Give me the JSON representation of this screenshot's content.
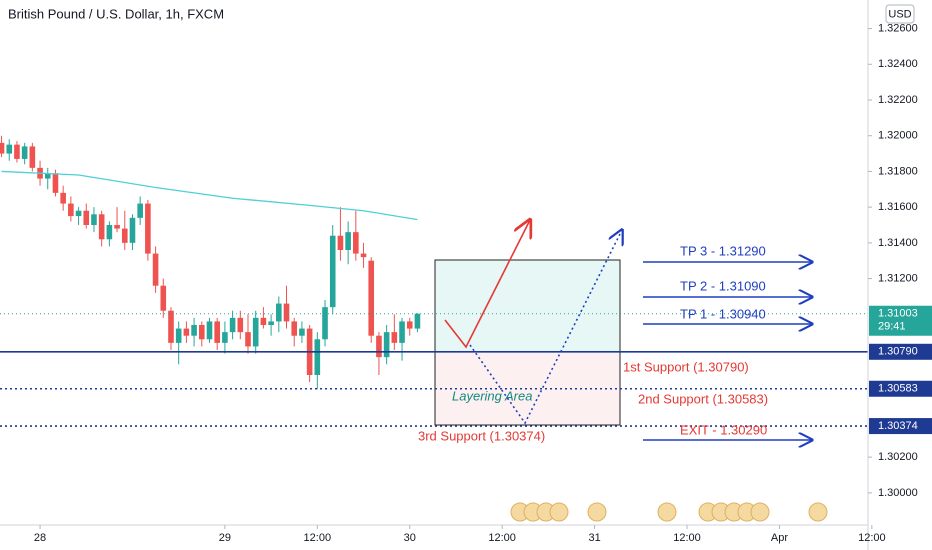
{
  "chart_data": {
    "type": "candlestick",
    "title": "British Pound / U.S. Dollar, 1h, FXCM",
    "currency": "USD",
    "up_color": "#26a69a",
    "down_color": "#ef5350",
    "x": [
      -5,
      -4,
      -3,
      -2,
      -1,
      0,
      1,
      2,
      3,
      4,
      5,
      6,
      7,
      8,
      9,
      10,
      11,
      12,
      13,
      14,
      15,
      16,
      17,
      18,
      19,
      20,
      21,
      22,
      23,
      24,
      25,
      26,
      27,
      28,
      29,
      30,
      31,
      32,
      33,
      34,
      35,
      36,
      37,
      38,
      39,
      40,
      41,
      42,
      43,
      44,
      45,
      46,
      47,
      48,
      49
    ],
    "open": [
      1.3196,
      1.319,
      1.3195,
      1.3187,
      1.3194,
      1.3182,
      1.3176,
      1.3179,
      1.3168,
      1.3162,
      1.3155,
      1.3158,
      1.315,
      1.3156,
      1.3142,
      1.315,
      1.3148,
      1.314,
      1.3154,
      1.3162,
      1.3134,
      1.3116,
      1.3102,
      1.3084,
      1.3092,
      1.3088,
      1.3094,
      1.3086,
      1.3096,
      1.3084,
      1.309,
      1.3098,
      1.309,
      1.3082,
      1.3098,
      1.3094,
      1.3096,
      1.3106,
      1.3096,
      1.3088,
      1.3092,
      1.3066,
      1.3086,
      1.3104,
      1.3144,
      1.3136,
      1.3146,
      1.3134,
      1.313,
      1.3088,
      1.3076,
      1.309,
      1.3084,
      1.3096,
      1.3092
    ],
    "high": [
      1.32,
      1.3198,
      1.3197,
      1.3196,
      1.3196,
      1.3186,
      1.3182,
      1.3181,
      1.3172,
      1.3166,
      1.316,
      1.3162,
      1.316,
      1.3158,
      1.3152,
      1.316,
      1.3158,
      1.3156,
      1.3166,
      1.3164,
      1.3138,
      1.312,
      1.3104,
      1.3096,
      1.3096,
      1.3098,
      1.3096,
      1.3098,
      1.3098,
      1.3096,
      1.3102,
      1.3102,
      1.31,
      1.3102,
      1.3104,
      1.31,
      1.311,
      1.3116,
      1.3098,
      1.3096,
      1.3094,
      1.309,
      1.3108,
      1.315,
      1.316,
      1.3152,
      1.3158,
      1.314,
      1.3132,
      1.309,
      1.3094,
      1.31,
      1.3098,
      1.3098,
      1.31006
    ],
    "low": [
      1.3188,
      1.3186,
      1.3185,
      1.3184,
      1.318,
      1.3172,
      1.317,
      1.3166,
      1.3158,
      1.3152,
      1.315,
      1.3148,
      1.3146,
      1.3138,
      1.3138,
      1.3146,
      1.3136,
      1.3136,
      1.315,
      1.313,
      1.3112,
      1.3098,
      1.308,
      1.3072,
      1.3084,
      1.3082,
      1.3082,
      1.3084,
      1.308,
      1.3078,
      1.3086,
      1.3086,
      1.3078,
      1.3078,
      1.3092,
      1.3088,
      1.309,
      1.3092,
      1.3082,
      1.3084,
      1.3062,
      1.3058,
      1.3082,
      1.31,
      1.313,
      1.3128,
      1.313,
      1.3126,
      1.3084,
      1.3066,
      1.3072,
      1.308,
      1.3074,
      1.3088,
      1.309
    ],
    "close": [
      1.319,
      1.3195,
      1.3187,
      1.3194,
      1.3182,
      1.3176,
      1.3179,
      1.3168,
      1.3162,
      1.3155,
      1.3158,
      1.315,
      1.3156,
      1.3142,
      1.315,
      1.3148,
      1.314,
      1.3154,
      1.3162,
      1.3134,
      1.3116,
      1.3102,
      1.3084,
      1.3092,
      1.3088,
      1.3094,
      1.3086,
      1.3096,
      1.3084,
      1.309,
      1.3098,
      1.309,
      1.3082,
      1.3098,
      1.3094,
      1.3096,
      1.3106,
      1.3096,
      1.3088,
      1.3092,
      1.3066,
      1.3086,
      1.3104,
      1.3144,
      1.3136,
      1.3146,
      1.3134,
      1.3132,
      1.3088,
      1.3076,
      1.309,
      1.3084,
      1.3096,
      1.3092,
      1.31003
    ],
    "ma": {
      "color": "#4dd0d6",
      "x": [
        -5,
        5,
        15,
        25,
        35,
        42,
        49
      ],
      "values": [
        1.318,
        1.3178,
        1.3171,
        1.3165,
        1.3161,
        1.3158,
        1.3153
      ]
    },
    "xlim": [
      -5.2,
      107.5
    ],
    "ylim": [
      1.2982,
      1.3276
    ],
    "xticks": [
      {
        "value": 0,
        "label": "28"
      },
      {
        "value": 24,
        "label": "29"
      },
      {
        "value": 36,
        "label": "12:00"
      },
      {
        "value": 48,
        "label": "30"
      },
      {
        "value": 60,
        "label": "12:00"
      },
      {
        "value": 72,
        "label": "31"
      },
      {
        "value": 84,
        "label": "12:00"
      },
      {
        "value": 96,
        "label": "Apr"
      },
      {
        "value": 108,
        "label": "12:00"
      }
    ],
    "yticks": [
      {
        "value": 1.326,
        "label": "1.32600"
      },
      {
        "value": 1.324,
        "label": "1.32400"
      },
      {
        "value": 1.322,
        "label": "1.32200"
      },
      {
        "value": 1.32,
        "label": "1.32000"
      },
      {
        "value": 1.318,
        "label": "1.31800"
      },
      {
        "value": 1.316,
        "label": "1.31600"
      },
      {
        "value": 1.314,
        "label": "1.31400"
      },
      {
        "value": 1.312,
        "label": "1.31200"
      },
      {
        "value": 1.302,
        "label": "1.30200"
      },
      {
        "value": 1.3,
        "label": "1.30000"
      }
    ],
    "levels": [
      {
        "value": 1.3079,
        "label": "1.30790",
        "style": "solid"
      },
      {
        "value": 1.30583,
        "label": "1.30583",
        "style": "dotted"
      },
      {
        "value": 1.30374,
        "label": "1.30374",
        "style": "dotted"
      }
    ],
    "last_price": {
      "value": 1.31003,
      "label": "1.31003",
      "countdown": "29:41"
    },
    "annotations": {
      "tp3": "TP 3 - 1.31290",
      "tp2": "TP 2 - 1.31090",
      "tp1": "TP 1 - 1.30940",
      "exit": "EXIT - 1.30290",
      "support1": "1st Support (1.30790)",
      "support2": "2nd Support (1.30583)",
      "support3": "3rd Support (1.30374)",
      "layering": "Layering Area"
    }
  }
}
